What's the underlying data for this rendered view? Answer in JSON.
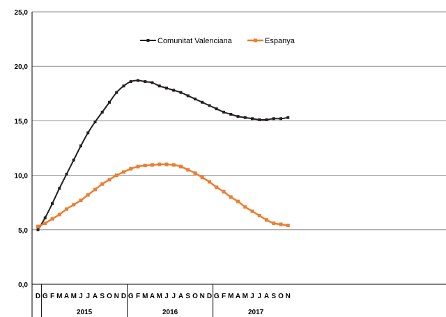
{
  "chart_data": {
    "type": "line",
    "ylim": [
      0,
      25
    ],
    "y_ticks": [
      "0,0",
      "5,0",
      "10,0",
      "15,0",
      "20,0",
      "25,0"
    ],
    "grid": true,
    "legend_position": "top-center",
    "x_months": [
      "D",
      "G",
      "F",
      "M",
      "A",
      "M",
      "J",
      "J",
      "A",
      "S",
      "O",
      "N",
      "D",
      "G",
      "F",
      "M",
      "A",
      "M",
      "J",
      "J",
      "A",
      "S",
      "O",
      "N",
      "D",
      "G",
      "F",
      "M",
      "A",
      "M",
      "J",
      "J",
      "A",
      "S",
      "O",
      "N"
    ],
    "x_years": [
      "2015",
      "2016",
      "2017"
    ],
    "series": [
      {
        "name": "Comunitat Valenciana",
        "color": "#231f20",
        "values": [
          5.0,
          6.1,
          7.4,
          8.8,
          10.1,
          11.4,
          12.7,
          13.9,
          14.9,
          15.8,
          16.7,
          17.6,
          18.2,
          18.6,
          18.7,
          18.6,
          18.5,
          18.2,
          18.0,
          17.8,
          17.6,
          17.3,
          17.0,
          16.7,
          16.4,
          16.1,
          15.8,
          15.6,
          15.4,
          15.3,
          15.2,
          15.1,
          15.1,
          15.2,
          15.2,
          15.3
        ]
      },
      {
        "name": "Espanya",
        "color": "#ed7d31",
        "values": [
          5.3,
          5.6,
          6.0,
          6.4,
          6.9,
          7.3,
          7.7,
          8.2,
          8.7,
          9.2,
          9.6,
          10.0,
          10.3,
          10.6,
          10.8,
          10.9,
          10.95,
          11.0,
          11.0,
          10.95,
          10.8,
          10.5,
          10.2,
          9.8,
          9.4,
          8.9,
          8.5,
          8.0,
          7.6,
          7.1,
          6.7,
          6.3,
          5.9,
          5.6,
          5.5,
          5.4
        ]
      }
    ]
  }
}
